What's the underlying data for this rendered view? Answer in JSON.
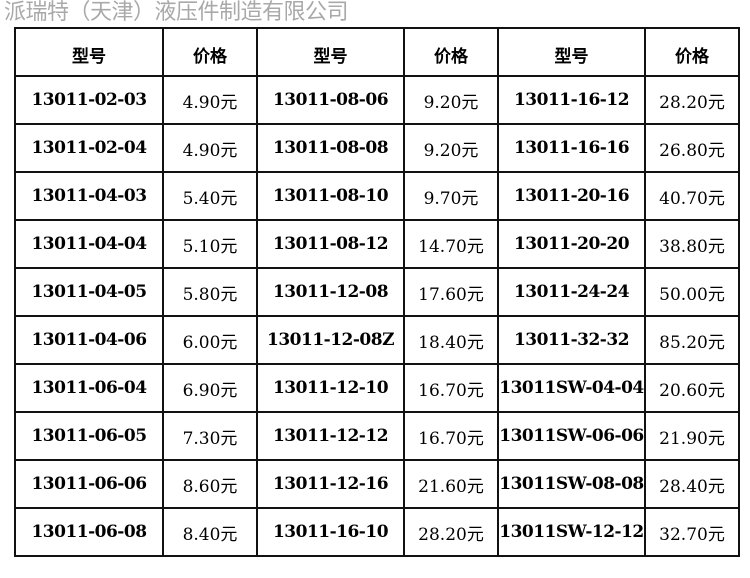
{
  "watermark": "派瑞特（天津）液压件制造有限公司",
  "headers": [
    "型号",
    "价格",
    "型号",
    "价格",
    "型号",
    "价格"
  ],
  "rows": [
    [
      "13011-02-03",
      "4.90元",
      "13011-08-06",
      "9.20元",
      "13011-16-12",
      "28.20元"
    ],
    [
      "13011-02-04",
      "4.90元",
      "13011-08-08",
      "9.20元",
      "13011-16-16",
      "26.80元"
    ],
    [
      "13011-04-03",
      "5.40元",
      "13011-08-10",
      "9.70元",
      "13011-20-16",
      "40.70元"
    ],
    [
      "13011-04-04",
      "5.10元",
      "13011-08-12",
      "14.70元",
      "13011-20-20",
      "38.80元"
    ],
    [
      "13011-04-05",
      "5.80元",
      "13011-12-08",
      "17.60元",
      "13011-24-24",
      "50.00元"
    ],
    [
      "13011-04-06",
      "6.00元",
      "13011-12-08Z",
      "18.40元",
      "13011-32-32",
      "85.20元"
    ],
    [
      "13011-06-04",
      "6.90元",
      "13011-12-10",
      "16.70元",
      "13011SW-04-04",
      "20.60元"
    ],
    [
      "13011-06-05",
      "7.30元",
      "13011-12-12",
      "16.70元",
      "13011SW-06-06",
      "21.90元"
    ],
    [
      "13011-06-06",
      "8.60元",
      "13011-12-16",
      "21.60元",
      "13011SW-08-08",
      "28.40元"
    ],
    [
      "13011-06-08",
      "8.40元",
      "13011-16-10",
      "28.20元",
      "13011SW-12-12",
      "32.70元"
    ]
  ]
}
